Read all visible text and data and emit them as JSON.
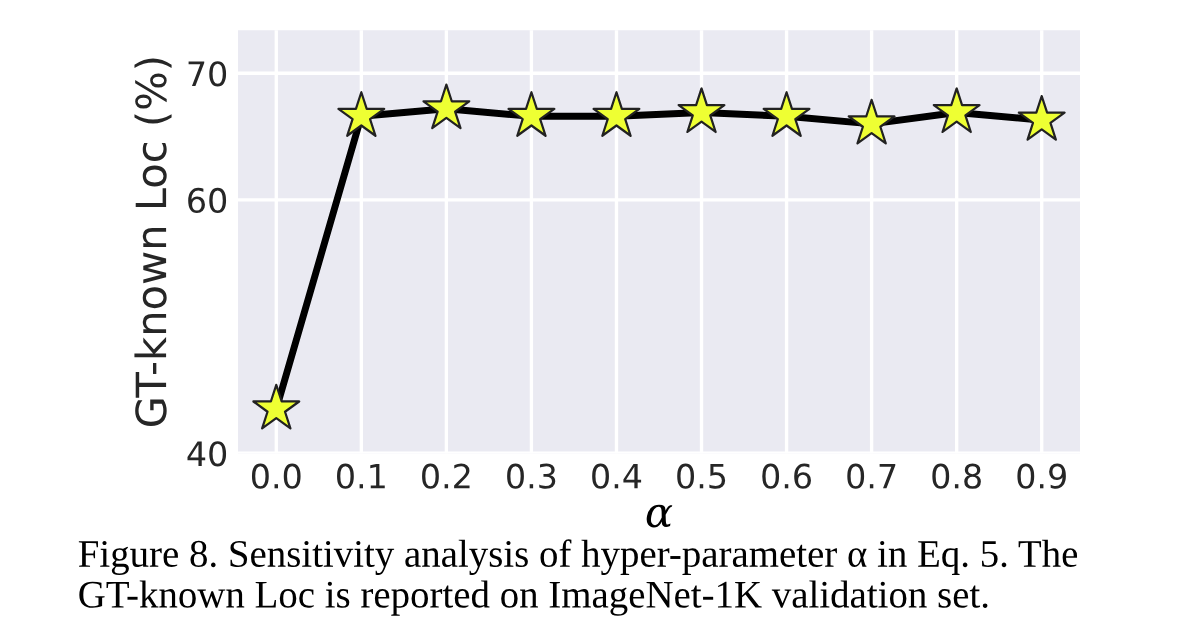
{
  "chart_data": {
    "type": "line",
    "xlabel": "α",
    "ylabel": "GT-known Loc (%)",
    "x": [
      0.0,
      0.1,
      0.2,
      0.3,
      0.4,
      0.5,
      0.6,
      0.7,
      0.8,
      0.9
    ],
    "series": [
      {
        "color": "#000000",
        "colors": [
          "#eeff33",
          "#eeff33",
          "#eeff33",
          "#eeff33",
          "#eeff33",
          "#eeff33",
          "#eeff33",
          "#eeff33",
          "#eeff33",
          "#eeff33"
        ],
        "values": [
          43.5,
          66.6,
          67.2,
          66.6,
          66.6,
          66.9,
          66.6,
          66.0,
          66.9,
          66.3
        ]
      }
    ],
    "xlim": [
      -0.045,
      0.945
    ],
    "ylim": [
      40,
      73.4
    ],
    "xticks": [
      {
        "value": 0.0,
        "label": "0.0"
      },
      0.1,
      0.2,
      0.3,
      0.4,
      0.5,
      0.6,
      0.7,
      0.8,
      0.9
    ],
    "yticks": [
      40,
      60,
      70
    ],
    "grid": true,
    "marker": "star",
    "line_style": "solid",
    "annotations": [
      "Figure 8. Sensitivity analysis of hyper-parameter α in Eq. 5. The GT-known Loc is reported on ImageNet-1K validation set."
    ]
  }
}
